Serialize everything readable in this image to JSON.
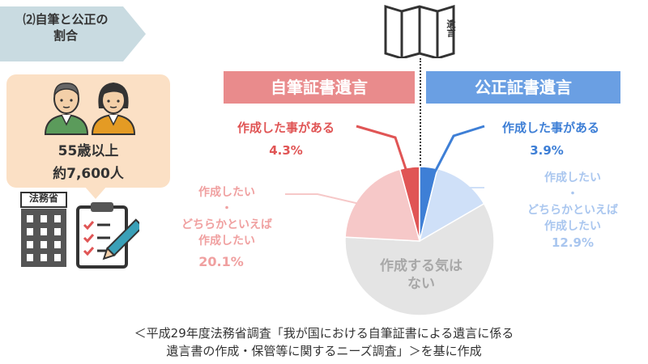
{
  "section": {
    "tag_line1": "⑵自筆と公正の",
    "tag_line2": "割合",
    "age_label": "55歳以上",
    "count_label": "約7,600人",
    "ministry_label": "法務省",
    "scroll_label": "遺言"
  },
  "colors": {
    "jihitsu": "#e47f83",
    "jihitsu_dark": "#e05555",
    "jihitsu_light": "#f6c8c8",
    "kosei": "#6a9fe3",
    "kosei_dark": "#3e7fd6",
    "kosei_light": "#cfe0f8",
    "none": "#e4e4e4"
  },
  "chart_data": {
    "type": "pie",
    "left_title": "自筆証書遺言",
    "right_title": "公正証書遺言",
    "slices": [
      {
        "side": "jihitsu",
        "label": "作成した事がある",
        "value": 4.3,
        "value_label": "4.3%"
      },
      {
        "side": "kosei",
        "label": "作成した事がある",
        "value": 3.9,
        "value_label": "3.9%"
      },
      {
        "side": "kosei",
        "label_lines": [
          "作成したい",
          "・",
          "どちらかといえば",
          "作成したい"
        ],
        "value": 12.9,
        "value_label": "12.9%"
      },
      {
        "side": "none",
        "label_lines": [
          "作成する気は",
          "ない"
        ],
        "value": 59.8
      },
      {
        "side": "jihitsu",
        "label_lines": [
          "作成したい",
          "・",
          "どちらかといえば",
          "作成したい"
        ],
        "value": 20.1,
        "value_label": "20.1%"
      }
    ]
  },
  "footer": {
    "line1": "＜平成29年度法務省調査「我が国における自筆証書による遺言に係る",
    "line2": "遺言書の作成・保管等に関するニーズ調査」＞を基に作成"
  }
}
